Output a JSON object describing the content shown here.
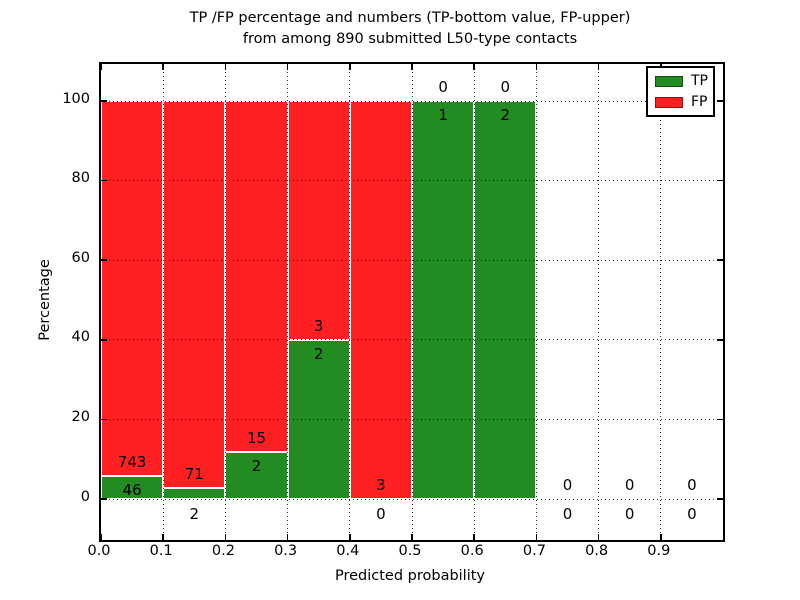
{
  "chart_data": {
    "type": "bar",
    "stacked": true,
    "title": "TP /FP percentage and numbers (TP-bottom value, FP-upper)\nfrom among 890 submitted L50-type contacts",
    "xlabel": "Predicted probability",
    "ylabel": "Percentage",
    "total_submitted": 890,
    "xlim": [
      0.0,
      1.0
    ],
    "ylim": [
      -10.3,
      109.3
    ],
    "bin_width": 0.1,
    "bin_starts": [
      0.0,
      0.1,
      0.2,
      0.3,
      0.4,
      0.5,
      0.6,
      0.7,
      0.8,
      0.9
    ],
    "x_tick_labels": [
      "0.0",
      "0.1",
      "0.2",
      "0.3",
      "0.4",
      "0.5",
      "0.6",
      "0.7",
      "0.8",
      "0.9"
    ],
    "y_ticks": [
      0,
      20,
      40,
      60,
      80,
      100
    ],
    "grid": "dotted black, both axes, drawn above bars",
    "series": [
      {
        "name": "TP",
        "color": "#228B22",
        "counts": [
          46,
          2,
          2,
          2,
          0,
          1,
          2,
          0,
          0,
          0
        ]
      },
      {
        "name": "FP",
        "color": "#FF2121",
        "counts": [
          743,
          71,
          15,
          3,
          3,
          0,
          0,
          0,
          0,
          0
        ]
      }
    ],
    "tp_percent_by_bin": [
      5.83,
      2.74,
      11.76,
      40.0,
      0.0,
      100.0,
      100.0,
      null,
      null,
      null
    ],
    "legend": {
      "position": "upper right",
      "entries": [
        {
          "label": "TP",
          "color": "#228B22"
        },
        {
          "label": "FP",
          "color": "#FF2121"
        }
      ]
    }
  }
}
